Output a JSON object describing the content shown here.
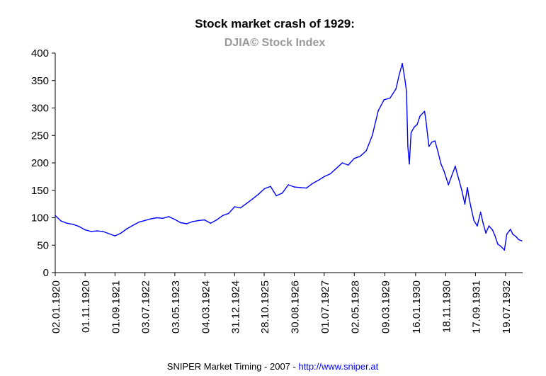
{
  "chart_data": {
    "type": "line",
    "title": "Stock market crash of 1929:",
    "subtitle": "DJIA©  Stock Index",
    "xlabel": "",
    "ylabel": "",
    "ylim": [
      0,
      400
    ],
    "yticks": [
      "0",
      "50",
      "100",
      "150",
      "200",
      "250",
      "300",
      "350",
      "400"
    ],
    "xtick_labels": [
      "02.01.1920",
      "01.11.1920",
      "01.09.1921",
      "03.07.1922",
      "03.05.1923",
      "04.03.1924",
      "31.12.1924",
      "28.10.1925",
      "30.08.1926",
      "01.07.1927",
      "02.05.1928",
      "09.03.1929",
      "16.01.1930",
      "18.11.1930",
      "17.09.1931",
      "19.07.1932"
    ],
    "grid": false,
    "legend": "none",
    "colors": {
      "line": "#0000ff",
      "subtitle": "#999999",
      "link": "#0000ff"
    },
    "series": [
      {
        "x": [
          "1920-01-02",
          "1920-03-01",
          "1920-05-01",
          "1920-07-01",
          "1920-09-01",
          "1920-11-01",
          "1921-01-01",
          "1921-03-01",
          "1921-05-01",
          "1921-07-01",
          "1921-09-01",
          "1921-11-01",
          "1922-01-01",
          "1922-03-01",
          "1922-05-01",
          "1922-07-01",
          "1922-09-01",
          "1922-11-01",
          "1923-01-01",
          "1923-03-01",
          "1923-05-01",
          "1923-07-01",
          "1923-09-01",
          "1923-11-01",
          "1924-01-01",
          "1924-03-01",
          "1924-05-01",
          "1924-07-01",
          "1924-09-01",
          "1924-11-01",
          "1925-01-01",
          "1925-03-01",
          "1925-05-01",
          "1925-07-01",
          "1925-09-01",
          "1925-11-01",
          "1926-01-01",
          "1926-03-01",
          "1926-05-01",
          "1926-07-01",
          "1926-09-01",
          "1926-11-01",
          "1927-01-01",
          "1927-03-01",
          "1927-05-01",
          "1927-07-01",
          "1927-09-01",
          "1927-11-01",
          "1928-01-01",
          "1928-03-01",
          "1928-05-01",
          "1928-07-01",
          "1928-09-01",
          "1928-11-01",
          "1929-01-01",
          "1929-03-01",
          "1929-05-01",
          "1929-07-01",
          "1929-08-01",
          "1929-09-03",
          "1929-10-01",
          "1929-10-15",
          "1929-10-29",
          "1929-11-13",
          "1929-12-01",
          "1930-01-01",
          "1930-02-01",
          "1930-03-01",
          "1930-04-17",
          "1930-05-01",
          "1930-06-01",
          "1930-07-01",
          "1930-08-01",
          "1930-09-01",
          "1930-10-01",
          "1930-11-01",
          "1930-12-16",
          "1931-01-01",
          "1931-02-24",
          "1931-03-15",
          "1931-04-01",
          "1931-05-01",
          "1931-06-01",
          "1931-06-27",
          "1931-07-15",
          "1931-08-01",
          "1931-09-01",
          "1931-10-05",
          "1931-11-09",
          "1931-12-01",
          "1932-01-01",
          "1932-02-01",
          "1932-03-08",
          "1932-04-01",
          "1932-05-01",
          "1932-06-01",
          "1932-07-08",
          "1932-08-01",
          "1932-09-07",
          "1932-10-01",
          "1932-11-01",
          "1932-12-01",
          "1932-12-31"
        ],
        "values": [
          104,
          94,
          90,
          88,
          84,
          78,
          75,
          76,
          75,
          71,
          67,
          72,
          80,
          86,
          92,
          95,
          98,
          100,
          99,
          102,
          97,
          91,
          89,
          93,
          95,
          96,
          90,
          96,
          104,
          108,
          120,
          118,
          126,
          134,
          143,
          153,
          157,
          140,
          145,
          160,
          156,
          155,
          154,
          162,
          168,
          175,
          180,
          190,
          200,
          196,
          208,
          212,
          222,
          250,
          295,
          315,
          318,
          335,
          360,
          381,
          350,
          330,
          230,
          198,
          255,
          265,
          270,
          285,
          294,
          278,
          230,
          238,
          240,
          220,
          198,
          185,
          160,
          168,
          194,
          180,
          170,
          150,
          125,
          155,
          135,
          120,
          95,
          85,
          110,
          92,
          72,
          85,
          78,
          68,
          52,
          48,
          41,
          70,
          79,
          70,
          66,
          60,
          58
        ]
      }
    ]
  },
  "footer": {
    "text": "SNIPER Market Timing - 2007 - ",
    "link": "http://www.sniper.at"
  }
}
